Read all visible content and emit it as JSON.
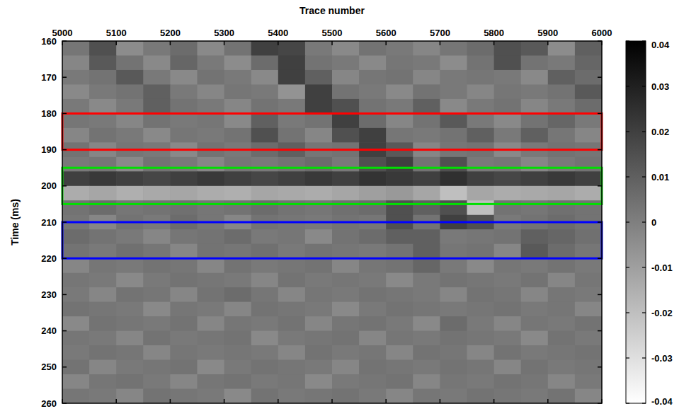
{
  "chart_data": {
    "type": "heatmap",
    "x_label": "Trace number",
    "y_label": "Time (ms)",
    "xlim": [
      5000,
      6000
    ],
    "ylim": [
      160,
      260
    ],
    "xticks": [
      5000,
      5100,
      5200,
      5300,
      5400,
      5500,
      5600,
      5700,
      5800,
      5900,
      6000
    ],
    "yticks": [
      160,
      170,
      180,
      190,
      200,
      210,
      220,
      230,
      240,
      250,
      260
    ],
    "x_edges": [
      5000,
      5050,
      5100,
      5150,
      5200,
      5250,
      5300,
      5350,
      5400,
      5450,
      5500,
      5550,
      5600,
      5650,
      5700,
      5750,
      5800,
      5850,
      5900,
      5950,
      6000
    ],
    "y_edges": [
      160,
      164,
      168,
      172,
      176,
      180,
      184,
      188,
      192,
      196,
      200,
      204,
      208,
      212,
      216,
      220,
      224,
      228,
      232,
      236,
      240,
      244,
      248,
      252,
      256,
      260
    ],
    "cells": [
      [
        0.003,
        0.015,
        -0.004,
        0.002,
        0.006,
        -0.003,
        0.004,
        0.02,
        0.018,
        0.002,
        -0.003,
        0.004,
        0.002,
        -0.002,
        0.003,
        0.006,
        0.015,
        0.012,
        -0.004,
        0.01
      ],
      [
        -0.002,
        0.012,
        0.004,
        -0.003,
        0.008,
        0.002,
        -0.004,
        0.006,
        0.02,
        0.004,
        0.002,
        -0.003,
        0.003,
        0.002,
        -0.004,
        0.004,
        0.015,
        0.004,
        0.002,
        0.008
      ],
      [
        0.002,
        0.004,
        0.012,
        0.002,
        -0.003,
        0.004,
        0.002,
        -0.003,
        0.02,
        0.01,
        -0.002,
        0.003,
        0.004,
        -0.002,
        0.002,
        0.003,
        0.002,
        -0.003,
        0.01,
        0.006
      ],
      [
        -0.003,
        0.002,
        0.004,
        0.01,
        0.002,
        -0.002,
        0.003,
        0.002,
        -0.006,
        0.02,
        0.004,
        0.002,
        -0.003,
        0.004,
        0.002,
        -0.002,
        0.003,
        0.002,
        0.004,
        0.012
      ],
      [
        0.002,
        -0.003,
        0.002,
        0.01,
        0.004,
        0.002,
        -0.002,
        0.004,
        0.002,
        0.02,
        0.015,
        0.004,
        0.002,
        0.01,
        -0.003,
        0.002,
        0.004,
        -0.002,
        0.002,
        0.006
      ],
      [
        0.003,
        0.002,
        -0.002,
        0.004,
        0.002,
        0.003,
        -0.003,
        0.01,
        0.002,
        0.004,
        0.02,
        0.006,
        -0.002,
        0.004,
        0.012,
        0.002,
        -0.003,
        0.004,
        0.008,
        0.002
      ],
      [
        -0.002,
        0.004,
        0.002,
        -0.003,
        0.003,
        0.002,
        0.004,
        0.015,
        0.004,
        -0.002,
        0.015,
        0.02,
        0.003,
        0.002,
        0.004,
        0.01,
        0.002,
        0.01,
        0.003,
        -0.002
      ],
      [
        0.004,
        -0.002,
        0.003,
        0.002,
        -0.003,
        0.004,
        0.002,
        0.006,
        0.01,
        0.003,
        0.004,
        0.02,
        0.012,
        -0.002,
        0.003,
        0.004,
        -0.003,
        0.002,
        0.004,
        0.003
      ],
      [
        0.002,
        0.003,
        -0.003,
        0.004,
        0.002,
        -0.002,
        0.003,
        0.002,
        0.004,
        0.006,
        0.002,
        0.015,
        0.02,
        0.004,
        0.015,
        0.002,
        0.003,
        -0.002,
        0.002,
        0.004
      ],
      [
        0.02,
        0.022,
        0.02,
        0.018,
        0.02,
        0.022,
        0.02,
        0.018,
        0.02,
        0.022,
        0.02,
        0.024,
        0.022,
        0.02,
        0.025,
        0.02,
        0.018,
        0.02,
        0.022,
        0.02
      ],
      [
        -0.014,
        -0.012,
        -0.015,
        -0.013,
        -0.012,
        -0.014,
        -0.015,
        -0.012,
        -0.013,
        -0.014,
        -0.012,
        -0.01,
        -0.008,
        -0.012,
        -0.02,
        -0.012,
        -0.014,
        -0.013,
        -0.012,
        -0.014
      ],
      [
        0.004,
        0.006,
        0.003,
        0.004,
        0.005,
        0.003,
        0.004,
        0.006,
        0.004,
        0.003,
        0.005,
        0.006,
        0.015,
        0.01,
        0.015,
        -0.02,
        0.004,
        0.003,
        0.005,
        0.004
      ],
      [
        0.003,
        -0.002,
        0.004,
        0.002,
        0.006,
        0.003,
        -0.002,
        0.004,
        0.003,
        0.002,
        0.004,
        0.003,
        0.015,
        0.004,
        0.02,
        0.015,
        0.002,
        0.004,
        0.006,
        0.004
      ],
      [
        0.006,
        0.004,
        0.002,
        -0.002,
        0.003,
        0.004,
        0.006,
        0.002,
        0.003,
        -0.003,
        0.004,
        0.006,
        0.01,
        0.01,
        0.002,
        0.003,
        0.004,
        0.01,
        0.008,
        0.005
      ],
      [
        0.004,
        0.002,
        0.005,
        0.003,
        -0.002,
        0.004,
        0.003,
        0.005,
        0.002,
        0.004,
        0.003,
        0.002,
        0.004,
        0.01,
        0.003,
        0.004,
        -0.002,
        0.012,
        0.006,
        0.003
      ],
      [
        -0.002,
        0.003,
        0.002,
        0.004,
        0.003,
        -0.002,
        0.004,
        0.002,
        0.003,
        0.004,
        -0.002,
        0.003,
        0.004,
        0.008,
        0.002,
        -0.003,
        0.003,
        0.002,
        0.004,
        0.002
      ],
      [
        0.003,
        0.002,
        -0.003,
        0.002,
        0.004,
        0.003,
        0.002,
        -0.002,
        0.004,
        0.002,
        0.003,
        0.002,
        -0.003,
        0.002,
        0.004,
        0.003,
        0.002,
        0.004,
        -0.002,
        0.003
      ],
      [
        0.002,
        -0.002,
        0.004,
        0.003,
        -0.002,
        0.004,
        0.006,
        0.003,
        -0.002,
        0.003,
        0.002,
        0.004,
        0.003,
        0.002,
        -0.002,
        0.004,
        0.003,
        -0.002,
        0.003,
        0.002
      ],
      [
        0.004,
        0.003,
        0.002,
        -0.003,
        0.003,
        0.002,
        -0.002,
        0.004,
        0.003,
        0.002,
        -0.003,
        0.002,
        0.004,
        0.003,
        0.002,
        0.003,
        0.004,
        0.002,
        0.003,
        -0.002
      ],
      [
        -0.003,
        0.004,
        0.003,
        0.002,
        0.004,
        -0.002,
        0.003,
        0.002,
        0.004,
        -0.002,
        0.003,
        0.004,
        0.002,
        -0.003,
        0.006,
        0.002,
        -0.002,
        0.003,
        0.002,
        0.004
      ],
      [
        0.003,
        0.002,
        -0.002,
        0.004,
        0.002,
        0.003,
        0.004,
        -0.003,
        0.002,
        0.003,
        0.004,
        -0.002,
        0.003,
        0.002,
        0.004,
        0.003,
        0.002,
        -0.003,
        0.004,
        0.002
      ],
      [
        0.002,
        0.004,
        0.003,
        -0.002,
        0.003,
        0.002,
        0.003,
        0.002,
        -0.002,
        0.004,
        0.002,
        0.003,
        -0.002,
        0.004,
        0.003,
        -0.002,
        0.004,
        0.002,
        0.003,
        0.004
      ],
      [
        0.004,
        -0.002,
        0.002,
        0.003,
        0.004,
        -0.003,
        0.002,
        0.004,
        0.003,
        0.002,
        -0.002,
        0.004,
        0.003,
        0.002,
        0.004,
        0.003,
        -0.002,
        0.004,
        0.002,
        0.003
      ],
      [
        -0.002,
        0.003,
        0.004,
        0.002,
        -0.002,
        0.003,
        0.004,
        0.002,
        0.003,
        -0.003,
        0.002,
        0.003,
        0.004,
        -0.002,
        0.003,
        0.002,
        0.004,
        0.003,
        -0.002,
        0.002
      ],
      [
        0.003,
        0.002,
        -0.002,
        0.004,
        0.003,
        0.002,
        -0.003,
        0.004,
        0.002,
        0.003,
        0.004,
        0.002,
        -0.002,
        0.003,
        0.002,
        0.004,
        0.003,
        0.002,
        0.004,
        -0.002
      ]
    ],
    "colorbar": {
      "range": [
        -0.04,
        0.04
      ],
      "ticks": [
        0.04,
        0.03,
        0.02,
        0.01,
        0,
        -0.01,
        -0.02,
        -0.03,
        -0.04
      ]
    },
    "annotations": [
      {
        "x0": 5000,
        "x1": 6000,
        "y0": 180,
        "y1": 190,
        "color": "#ff0000"
      },
      {
        "x0": 5000,
        "x1": 6000,
        "y0": 195,
        "y1": 205,
        "color": "#00e000"
      },
      {
        "x0": 5000,
        "x1": 6000,
        "y0": 210,
        "y1": 220,
        "color": "#0000ff"
      }
    ]
  }
}
